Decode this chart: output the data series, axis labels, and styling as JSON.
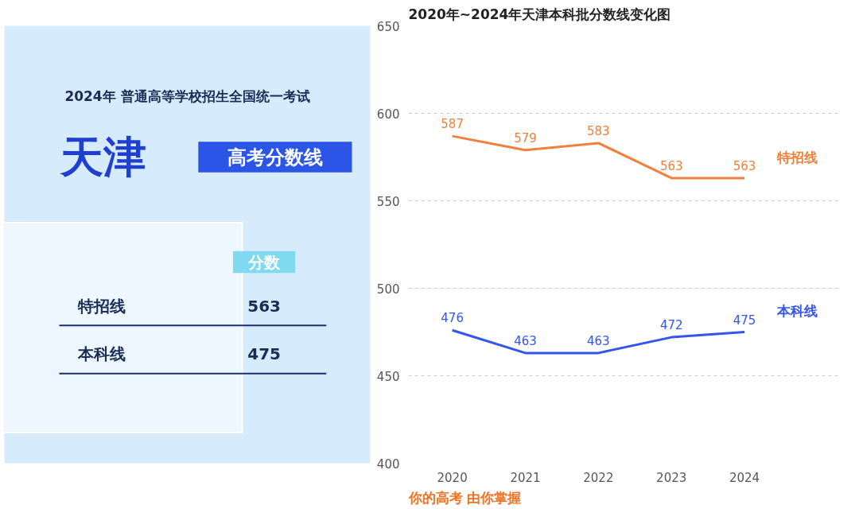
{
  "chart_data": [
    {
      "type": "other",
      "title": "天津",
      "subtitle": "2024年 普通高等学校招生全国统一考试",
      "annotations": [
        "高考分数线",
        "分数"
      ],
      "categories": [
        "特招线",
        "本科线"
      ],
      "values": [
        563,
        475
      ],
      "data_labels": true
    },
    {
      "type": "line",
      "title": "2020年~2024年天津本科批分数线变化图",
      "categories": [
        "2020",
        "2021",
        "2022",
        "2023",
        "2024"
      ],
      "ylim": [
        400,
        650
      ],
      "yticks": [
        400,
        450,
        500,
        550,
        600,
        650
      ],
      "grid": "y",
      "legend": false,
      "marker": "none",
      "line_style": "solid",
      "data_labels": true,
      "annotations": [
        "你的高考 由你掌握"
      ],
      "series": [
        {
          "name": "特招线",
          "color": "#f0803c",
          "values": [
            587,
            579,
            583,
            563,
            563
          ]
        },
        {
          "name": "本科线",
          "color": "#3355ee",
          "values": [
            476,
            463,
            463,
            472,
            475
          ]
        }
      ]
    }
  ]
}
